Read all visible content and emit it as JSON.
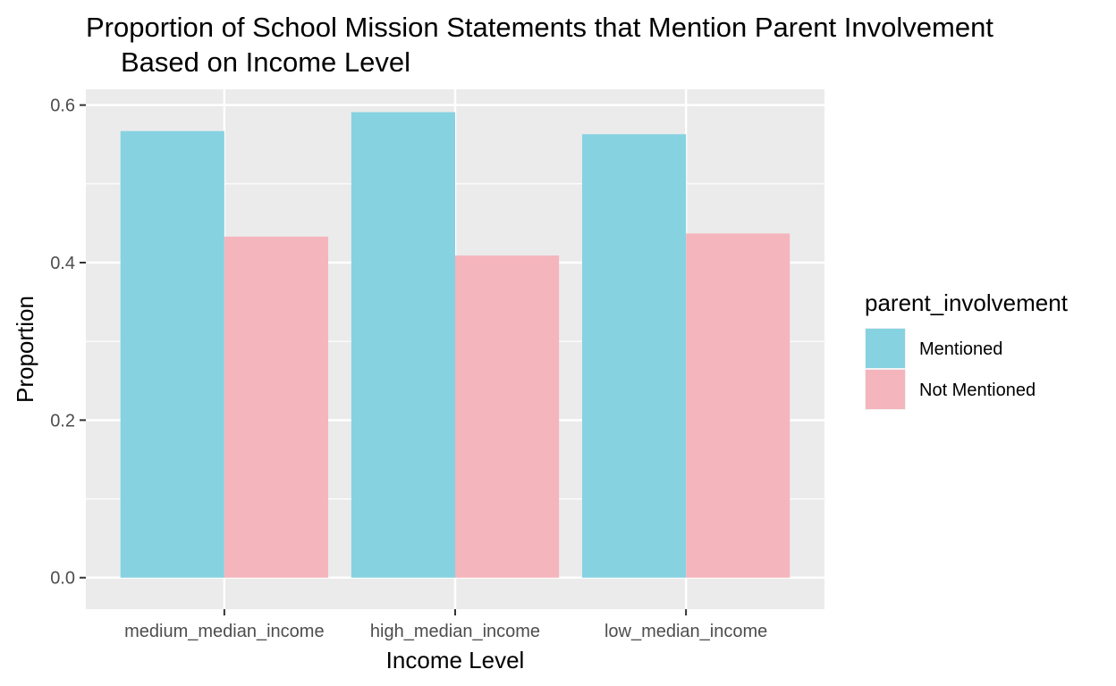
{
  "chart_data": {
    "type": "bar",
    "title_lines": [
      "Proportion of School Mission Statements that Mention Parent Involvement",
      "Based on Income Level"
    ],
    "xlabel": "Income Level",
    "ylabel": "Proportion",
    "categories": [
      "medium_median_income",
      "high_median_income",
      "low_median_income"
    ],
    "series": [
      {
        "name": "Mentioned",
        "color": "#86d2e1",
        "values": [
          0.567,
          0.591,
          0.563
        ]
      },
      {
        "name": "Not Mentioned",
        "color": "#f5b5bd",
        "values": [
          0.433,
          0.409,
          0.437
        ]
      }
    ],
    "ylim": [
      -0.04,
      0.62
    ],
    "yticks": [
      0.0,
      0.2,
      0.4,
      0.6
    ],
    "ytick_labels": [
      "0.0",
      "0.2",
      "0.4",
      "0.6"
    ],
    "legend": {
      "title": "parent_involvement",
      "position": "right"
    },
    "grid": true,
    "panel_background": "#ebebeb",
    "grid_color": "#ffffff"
  }
}
